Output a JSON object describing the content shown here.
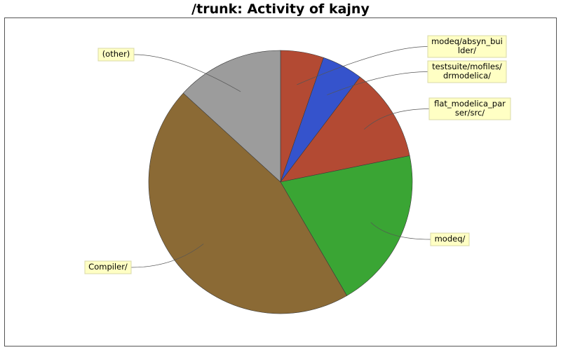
{
  "chart_data": {
    "type": "pie",
    "title": "/trunk: Activity of kajny",
    "start_angle_deg": 90,
    "direction": "clockwise",
    "slices": [
      {
        "label": "modeq/absyn_builder/",
        "label_lines": [
          "modeq/absyn_bui",
          "lder/"
        ],
        "value": 5.3,
        "color": "#b34a33"
      },
      {
        "label": "testsuite/mofiles/drmodelica/",
        "label_lines": [
          "testsuite/mofiles/",
          "drmodelica/"
        ],
        "value": 5.0,
        "color": "#3553cc"
      },
      {
        "label": "flat_modelica_parser/src/",
        "label_lines": [
          "flat_modelica_par",
          "ser/src/"
        ],
        "value": 11.5,
        "color": "#b34a33"
      },
      {
        "label": "modeq/",
        "label_lines": [
          "modeq/"
        ],
        "value": 19.8,
        "color": "#3aa534"
      },
      {
        "label": "Compiler/",
        "label_lines": [
          "Compiler/"
        ],
        "value": 45.2,
        "color": "#8b6a35"
      },
      {
        "label": "(other)",
        "label_lines": [
          "(other)"
        ],
        "value": 13.2,
        "color": "#9c9c9c"
      }
    ]
  }
}
